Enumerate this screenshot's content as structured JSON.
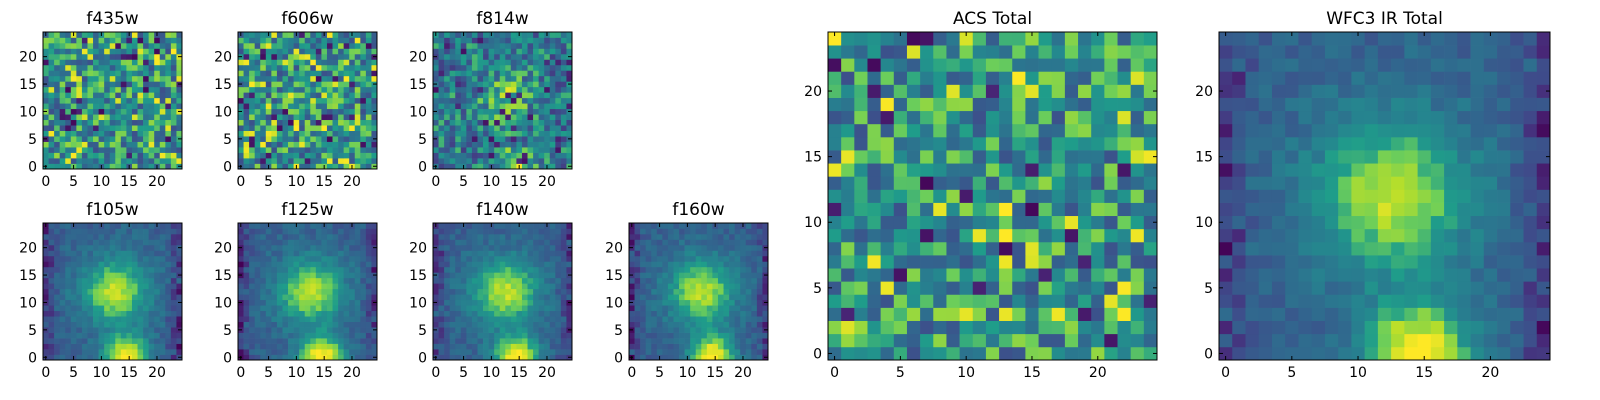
{
  "figure": {
    "title": ""
  },
  "colormap": {
    "name": "viridis",
    "stops": [
      "#440154",
      "#482777",
      "#3f4a8a",
      "#31678e",
      "#26838f",
      "#1f9d8a",
      "#6cce5a",
      "#b6de2b",
      "#fee825"
    ]
  },
  "chart_data": [
    {
      "type": "heatmap",
      "title": "f435w",
      "xticks": [
        "0",
        "5",
        "10",
        "15",
        "20"
      ],
      "yticks": [
        "0",
        "5",
        "10",
        "15",
        "20"
      ],
      "xlim": [
        0,
        25
      ],
      "ylim": [
        0,
        25
      ],
      "pixels": 25,
      "pattern": "noise",
      "seed": 11
    },
    {
      "type": "heatmap",
      "title": "f606w",
      "xticks": [
        "0",
        "5",
        "10",
        "15",
        "20"
      ],
      "yticks": [
        "0",
        "5",
        "10",
        "15",
        "20"
      ],
      "xlim": [
        0,
        25
      ],
      "ylim": [
        0,
        25
      ],
      "pixels": 25,
      "pattern": "noise",
      "seed": 23
    },
    {
      "type": "heatmap",
      "title": "f814w",
      "xticks": [
        "0",
        "5",
        "10",
        "15",
        "20"
      ],
      "yticks": [
        "0",
        "5",
        "10",
        "15",
        "20"
      ],
      "xlim": [
        0,
        25
      ],
      "ylim": [
        0,
        25
      ],
      "pixels": 25,
      "pattern": "noise_source",
      "seed": 37
    },
    {
      "type": "heatmap",
      "title": "f105w",
      "xticks": [
        "0",
        "5",
        "10",
        "15",
        "20"
      ],
      "yticks": [
        "0",
        "5",
        "10",
        "15",
        "20"
      ],
      "xlim": [
        0,
        25
      ],
      "ylim": [
        0,
        25
      ],
      "pixels": 25,
      "pattern": "source",
      "seed": 41
    },
    {
      "type": "heatmap",
      "title": "f125w",
      "xticks": [
        "0",
        "5",
        "10",
        "15",
        "20"
      ],
      "yticks": [
        "0",
        "5",
        "10",
        "15",
        "20"
      ],
      "xlim": [
        0,
        25
      ],
      "ylim": [
        0,
        25
      ],
      "pixels": 25,
      "pattern": "source",
      "seed": 53
    },
    {
      "type": "heatmap",
      "title": "f140w",
      "xticks": [
        "0",
        "5",
        "10",
        "15",
        "20"
      ],
      "yticks": [
        "0",
        "5",
        "10",
        "15",
        "20"
      ],
      "xlim": [
        0,
        25
      ],
      "ylim": [
        0,
        25
      ],
      "pixels": 25,
      "pattern": "source",
      "seed": 67
    },
    {
      "type": "heatmap",
      "title": "f160w",
      "xticks": [
        "0",
        "5",
        "10",
        "15",
        "20"
      ],
      "yticks": [
        "0",
        "5",
        "10",
        "15",
        "20"
      ],
      "xlim": [
        0,
        25
      ],
      "ylim": [
        0,
        25
      ],
      "pixels": 25,
      "pattern": "source",
      "seed": 79
    },
    {
      "type": "heatmap",
      "title": "ACS Total",
      "xticks": [
        "0",
        "5",
        "10",
        "15",
        "20"
      ],
      "yticks": [
        "0",
        "5",
        "10",
        "15",
        "20"
      ],
      "xlim": [
        0,
        25
      ],
      "ylim": [
        0,
        25
      ],
      "pixels": 25,
      "pattern": "noise",
      "seed": 97
    },
    {
      "type": "heatmap",
      "title": "WFC3 IR Total",
      "xticks": [
        "0",
        "5",
        "10",
        "15",
        "20"
      ],
      "yticks": [
        "0",
        "5",
        "10",
        "15",
        "20"
      ],
      "xlim": [
        0,
        25
      ],
      "ylim": [
        0,
        25
      ],
      "pixels": 25,
      "pattern": "source",
      "seed": 113
    }
  ]
}
